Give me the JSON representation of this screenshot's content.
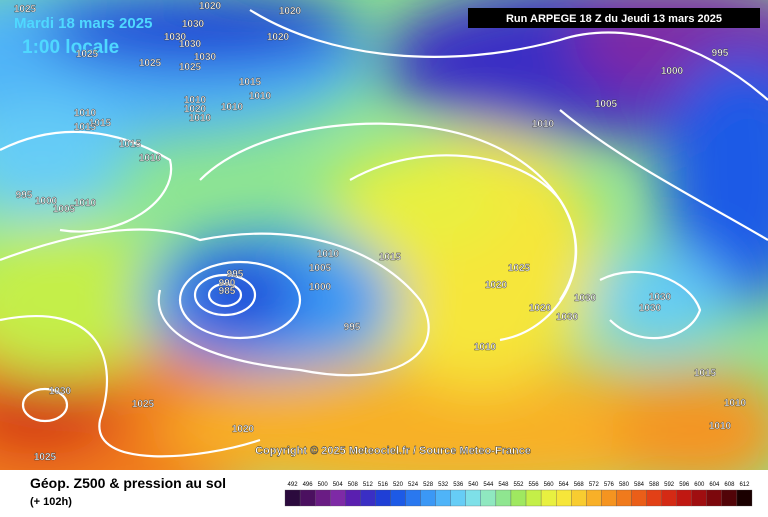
{
  "header": {
    "date": "Mardi 18 mars 2025",
    "time": "1:00 locale",
    "run": "Run ARPEGE 18 Z du Jeudi 13 mars 2025"
  },
  "copyright": "Copyright © 2025 Meteociel.fr / Source Meteo-France",
  "footer": {
    "title": "Géop. Z500 & pression au sol",
    "lead": "(+ 102h)"
  },
  "isobar_labels": [
    1025,
    1030,
    1030,
    1030,
    1020,
    1030,
    1025,
    1025,
    1025,
    1020,
    1020,
    1015,
    1010,
    1010,
    1020,
    1010,
    1010,
    1010,
    1015,
    1015,
    1015,
    1010,
    995,
    1000,
    1005,
    1010,
    1000,
    995,
    1005,
    1010,
    1015,
    1010,
    1005,
    1000,
    995,
    990,
    985,
    995,
    1025,
    1020,
    1020,
    1030,
    1030,
    1030,
    1030,
    1010,
    1015,
    1010,
    1010,
    1025,
    1030,
    1020,
    1025
  ],
  "scale": {
    "labels": [
      492,
      496,
      500,
      504,
      508,
      512,
      516,
      520,
      524,
      528,
      532,
      536,
      540,
      544,
      548,
      552,
      556,
      560,
      564,
      568,
      572,
      576,
      580,
      584,
      588,
      592,
      596,
      600,
      604,
      608,
      612
    ],
    "colors": [
      "#2b0a3d",
      "#4b1060",
      "#6a1c84",
      "#7e2aa6",
      "#5a1fb0",
      "#3a2fc4",
      "#1f3fd6",
      "#1d5ae6",
      "#2a78ef",
      "#3b98f5",
      "#4fb4f8",
      "#66cdf6",
      "#7ee0e8",
      "#8fe8c0",
      "#8fe690",
      "#9fe860",
      "#c4ef48",
      "#e8f040",
      "#f6e63a",
      "#f8cc30",
      "#f8b028",
      "#f59420",
      "#f07a1c",
      "#ea5e18",
      "#e24016",
      "#d42a14",
      "#c01812",
      "#a00e10",
      "#7c080c",
      "#520408",
      "#1a0000"
    ]
  }
}
